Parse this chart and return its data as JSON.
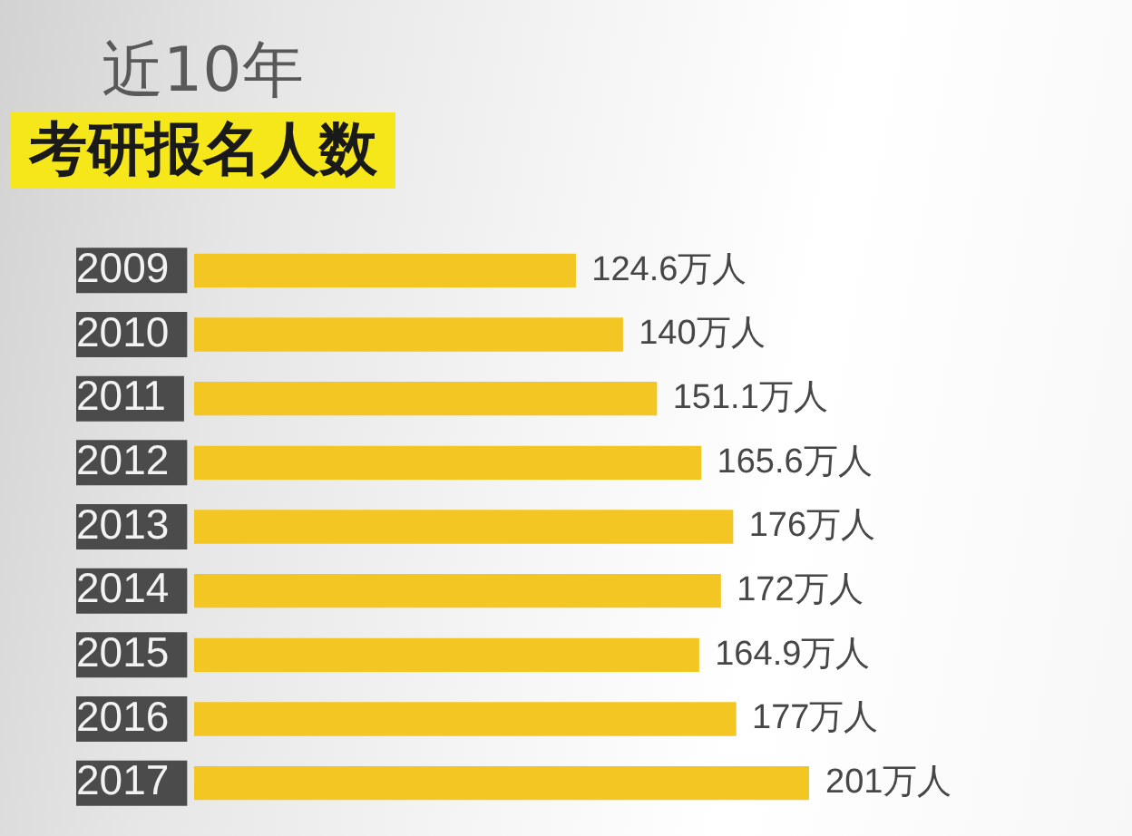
{
  "chart_data": {
    "type": "bar",
    "orientation": "horizontal",
    "title": "近10年",
    "subtitle": "考研报名人数",
    "categories": [
      "2009",
      "2010",
      "2011",
      "2012",
      "2013",
      "2014",
      "2015",
      "2016",
      "2017"
    ],
    "values": [
      124.6,
      140,
      151.1,
      165.6,
      176,
      172,
      164.9,
      177,
      201
    ],
    "color": "#f3c624",
    "value_labels": [
      "124.6万人",
      "140万人",
      "151.1万人",
      "165.6万人",
      "176万人",
      "172万人",
      "164.9万人",
      "177万人",
      "201万人"
    ]
  }
}
